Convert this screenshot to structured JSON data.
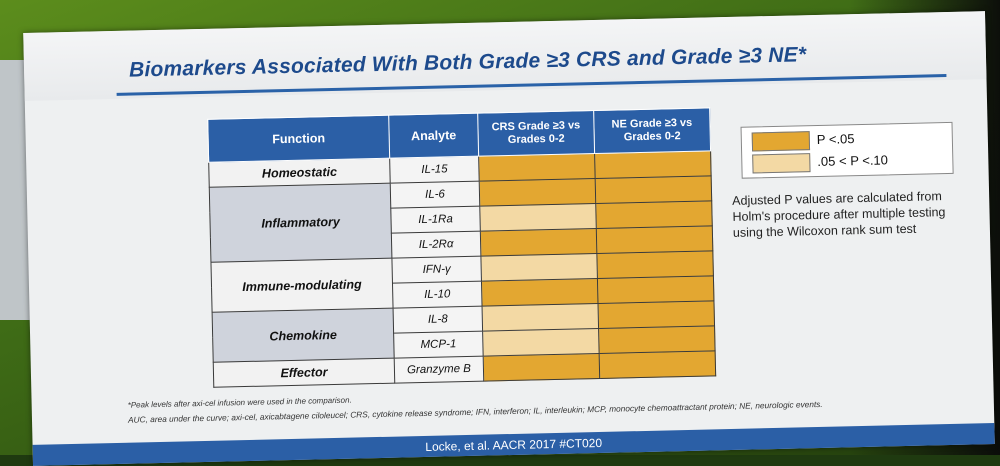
{
  "title": "Biomarkers Associated With Both Grade ≥3 CRS and Grade ≥3 NE*",
  "table": {
    "headers": [
      "Function",
      "Analyte",
      "CRS Grade ≥3 vs Grades 0-2",
      "NE Grade ≥3 vs Grades 0-2"
    ],
    "groups": [
      {
        "function": "Homeostatic",
        "rows": [
          {
            "analyte": "IL-15",
            "crs": "dark",
            "ne": "dark"
          }
        ]
      },
      {
        "function": "Inflammatory",
        "rows": [
          {
            "analyte": "IL-6",
            "crs": "dark",
            "ne": "dark"
          },
          {
            "analyte": "IL-1Ra",
            "crs": "light",
            "ne": "dark"
          },
          {
            "analyte": "IL-2Rα",
            "crs": "dark",
            "ne": "dark"
          }
        ]
      },
      {
        "function": "Immune-modulating",
        "rows": [
          {
            "analyte": "IFN-γ",
            "crs": "light",
            "ne": "dark"
          },
          {
            "analyte": "IL-10",
            "crs": "dark",
            "ne": "dark"
          }
        ]
      },
      {
        "function": "Chemokine",
        "rows": [
          {
            "analyte": "IL-8",
            "crs": "light",
            "ne": "dark"
          },
          {
            "analyte": "MCP-1",
            "crs": "light",
            "ne": "dark"
          }
        ]
      },
      {
        "function": "Effector",
        "rows": [
          {
            "analyte": "Granzyme B",
            "crs": "dark",
            "ne": "dark"
          }
        ]
      }
    ]
  },
  "legend": {
    "items": [
      {
        "label": "P <.05",
        "color": "#e3a731"
      },
      {
        "label": ".05 < P <.10",
        "color": "#f3d9a4"
      }
    ]
  },
  "note": "Adjusted P values are calculated from Holm's procedure after multiple testing using the Wilcoxon rank sum test",
  "footnote1": "*Peak levels after axi-cel infusion were used in the comparison.",
  "footnote2": "AUC, area under the curve; axi-cel, axicabtagene ciloleucel; CRS, cytokine release syndrome; IFN, interferon; IL, interleukin; MCP, monocyte chemoattractant protein; NE, neurologic events.",
  "citation": "Locke, et al. AACR 2017 #CT020",
  "colors": {
    "dark": "#e3a731",
    "light": "#f3d9a4",
    "header": "#2b5fa6"
  }
}
